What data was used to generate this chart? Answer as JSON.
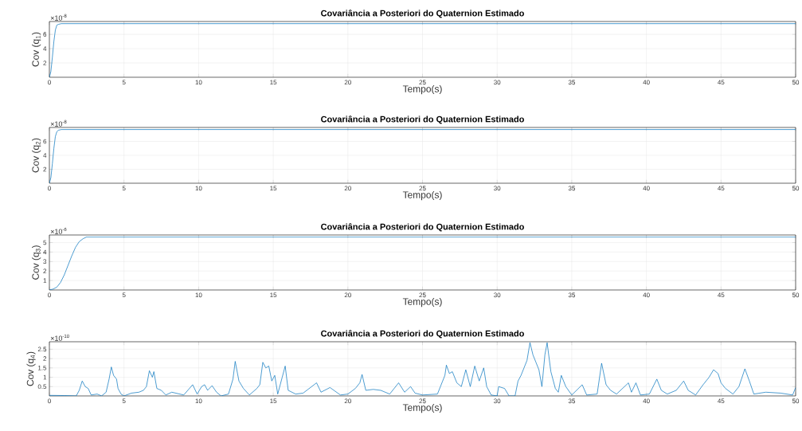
{
  "chart_data": [
    {
      "type": "line",
      "title": "Covariância a Posteriori do Quaternion Estimado",
      "xlabel": "Tempo(s)",
      "ylabel": "Cov (q$_{1}$)",
      "annotations": [
        "×10$^{-8}$"
      ],
      "color": "#0072bd",
      "grid": true,
      "x": [
        0,
        0.1,
        0.2,
        0.3,
        0.4,
        0.5,
        0.6,
        0.8,
        1,
        50
      ],
      "values": [
        0,
        0.8,
        2.8,
        5,
        6.6,
        7.3,
        7.4,
        7.5,
        7.5,
        7.5
      ],
      "xlim": [
        0,
        50
      ],
      "xticks": [
        0,
        5,
        10,
        15,
        20,
        25,
        30,
        35,
        40,
        45,
        50
      ],
      "ylim": [
        0,
        7.8
      ],
      "yticks": [
        2,
        4,
        6
      ]
    },
    {
      "type": "line",
      "title": "Covariância a Posteriori do Quaternion Estimado",
      "xlabel": "Tempo(s)",
      "ylabel": "Cov (q$_{2}$)",
      "annotations": [
        "×10$^{-8}$"
      ],
      "color": "#0072bd",
      "grid": true,
      "x": [
        0,
        0.1,
        0.2,
        0.3,
        0.4,
        0.5,
        0.6,
        0.8,
        1,
        50
      ],
      "values": [
        0,
        0.8,
        2.8,
        5,
        6.7,
        7.4,
        7.6,
        7.7,
        7.7,
        7.7
      ],
      "xlim": [
        0,
        50
      ],
      "xticks": [
        0,
        5,
        10,
        15,
        20,
        25,
        30,
        35,
        40,
        45,
        50
      ],
      "ylim": [
        0,
        8
      ],
      "yticks": [
        2,
        4,
        6
      ]
    },
    {
      "type": "line",
      "title": "Covariância a Posteriori do Quaternion Estimado",
      "xlabel": "Tempo(s)",
      "ylabel": "Cov (q$_{3}$)",
      "annotations": [
        "×10$^{-6}$"
      ],
      "color": "#0072bd",
      "grid": true,
      "x": [
        0,
        0.25,
        0.5,
        0.75,
        1,
        1.25,
        1.5,
        1.75,
        2,
        2.25,
        2.5,
        3,
        4,
        50
      ],
      "values": [
        0,
        0.1,
        0.3,
        0.8,
        1.6,
        2.6,
        3.6,
        4.5,
        5.1,
        5.4,
        5.6,
        5.6,
        5.6,
        5.6
      ],
      "xlim": [
        0,
        50
      ],
      "xticks": [
        0,
        5,
        10,
        15,
        20,
        25,
        30,
        35,
        40,
        45,
        50
      ],
      "ylim": [
        0,
        5.8
      ],
      "yticks": [
        1,
        2,
        3,
        4,
        5
      ]
    },
    {
      "type": "line",
      "title": "Covariância a Posteriori do Quaternion Estimado",
      "xlabel": "Tempo(s)",
      "ylabel": "Cov (q$_{4}$)",
      "annotations": [
        "×10$^{-10}$"
      ],
      "color": "#0072bd",
      "grid": true,
      "x": [
        0,
        1,
        1.8,
        2.0,
        2.2,
        2.4,
        2.6,
        2.8,
        3.2,
        3.5,
        3.8,
        4.0,
        4.15,
        4.3,
        4.5,
        4.6,
        4.8,
        5.0,
        5.5,
        6,
        6.3,
        6.5,
        6.7,
        6.9,
        7.0,
        7.2,
        7.5,
        7.8,
        8.2,
        9,
        9.6,
        9.9,
        10.2,
        10.4,
        10.6,
        10.9,
        11.2,
        11.5,
        12.0,
        12.3,
        12.45,
        12.7,
        13,
        13.4,
        13.9,
        14.1,
        14.3,
        14.5,
        14.7,
        14.9,
        15.1,
        15.3,
        15.6,
        15.8,
        16.0,
        16.5,
        17.0,
        17.9,
        18.2,
        18.8,
        19.5,
        20,
        20.5,
        20.8,
        20.95,
        21.2,
        21.7,
        22.2,
        22.8,
        23.4,
        23.8,
        24.2,
        24.5,
        25,
        26,
        26.2,
        26.5,
        26.6,
        26.8,
        27.0,
        27.3,
        27.6,
        27.9,
        28.2,
        28.5,
        28.8,
        29.1,
        29.3,
        29.6,
        30,
        30.1,
        30.5,
        30.8,
        31.2,
        31.4,
        31.6,
        31.8,
        32.0,
        32.2,
        32.4,
        32.6,
        32.8,
        33.0,
        33.2,
        33.35,
        33.6,
        33.9,
        34.1,
        34.3,
        34.6,
        35,
        35.7,
        36,
        36.7,
        37.0,
        37.3,
        37.6,
        38,
        38.8,
        39,
        39.3,
        39.6,
        40.2,
        40.7,
        41.0,
        41.4,
        42.0,
        42.5,
        42.8,
        43.3,
        43.8,
        44.2,
        44.5,
        44.8,
        45.0,
        45.3,
        45.8,
        46.2,
        46.6,
        46.9,
        47.2,
        48,
        49,
        49.8,
        50
      ],
      "values": [
        0.03,
        0.02,
        0,
        0.3,
        0.8,
        0.5,
        0.4,
        0.05,
        0.1,
        0,
        0.2,
        0.9,
        1.55,
        1.1,
        0.9,
        0.4,
        0.1,
        0,
        0.15,
        0.2,
        0.3,
        0.5,
        1.35,
        1.0,
        1.3,
        0.4,
        0.3,
        0.05,
        0.2,
        0.05,
        0.6,
        0.1,
        0.5,
        0.6,
        0.3,
        0.55,
        0.2,
        0,
        0.1,
        0.9,
        1.85,
        0.8,
        0.4,
        0.05,
        0.4,
        0.6,
        1.8,
        1.5,
        1.6,
        0.8,
        1.1,
        0.1,
        1.0,
        1.6,
        0.3,
        0.1,
        0.15,
        0.7,
        0.2,
        0.45,
        0.05,
        0.1,
        0.4,
        0.7,
        1.15,
        0.3,
        0.35,
        0.3,
        0.1,
        0.7,
        0.2,
        0.5,
        0.15,
        0.05,
        0.1,
        0.5,
        1.1,
        1.65,
        1.2,
        1.3,
        0.7,
        0.5,
        1.4,
        0.5,
        1.6,
        0.8,
        1.5,
        0.5,
        0.05,
        0,
        0.5,
        0.4,
        0,
        0,
        0.8,
        1.1,
        1.5,
        1.9,
        2.85,
        2.2,
        1.8,
        1.4,
        0.5,
        2.2,
        2.85,
        1.3,
        0.4,
        0.2,
        1.1,
        0.5,
        0.05,
        0.6,
        0.05,
        0.1,
        1.75,
        0.6,
        0.3,
        0.1,
        0.7,
        0.2,
        0.7,
        0.05,
        0.1,
        0.9,
        0.3,
        0.1,
        0.3,
        0.8,
        0.3,
        0.05,
        0.6,
        1.0,
        1.4,
        1.2,
        0.7,
        0.4,
        0.1,
        0.5,
        1.45,
        0.8,
        0.1,
        0.2,
        0.15,
        0.05,
        0.45
      ],
      "xlim": [
        0,
        50
      ],
      "xticks": [
        0,
        5,
        10,
        15,
        20,
        25,
        30,
        35,
        40,
        45,
        50
      ],
      "ylim": [
        0,
        2.9
      ],
      "yticks": [
        0.5,
        1,
        1.5,
        2,
        2.5
      ]
    }
  ]
}
